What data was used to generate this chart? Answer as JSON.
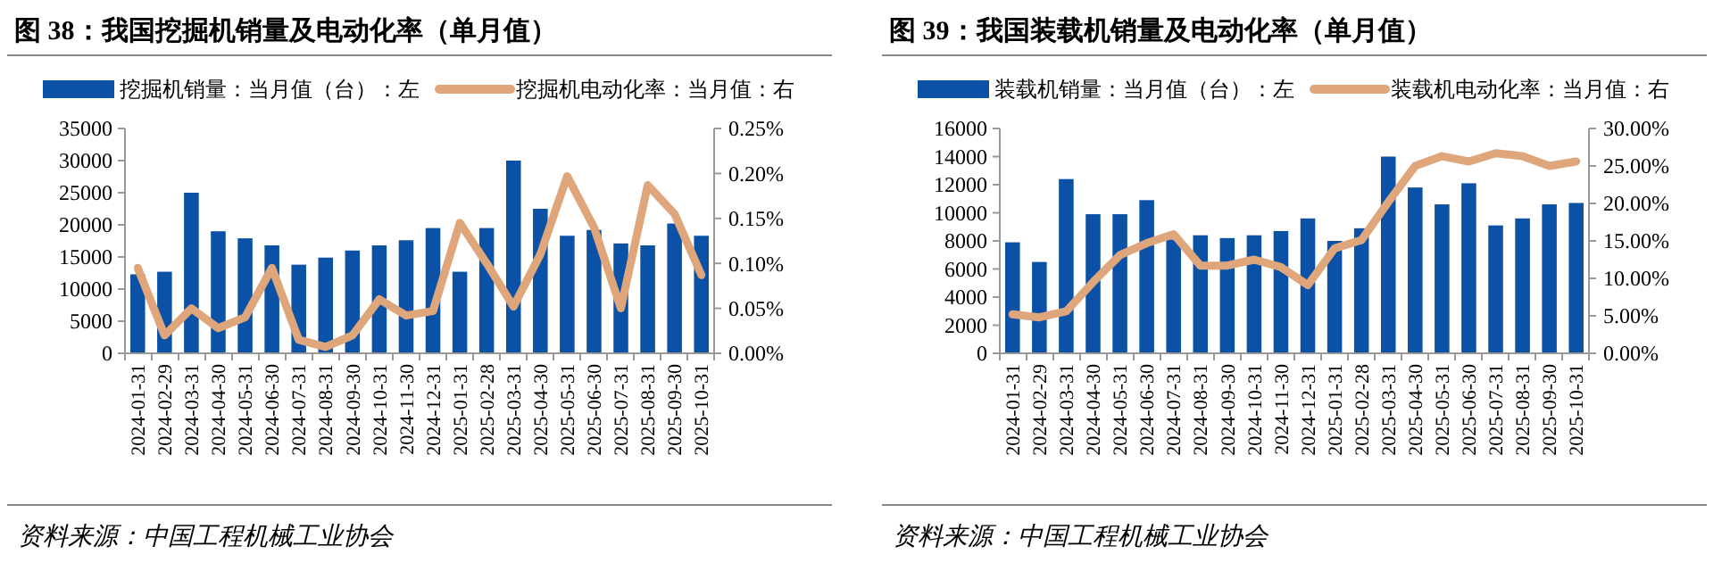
{
  "chart_data": [
    {
      "type": "bar",
      "title": "图 38：我国挖掘机销量及电动化率（单月值）",
      "annotations": [
        "资料来源：中国工程机械工业协会"
      ],
      "categories": [
        "2024-01-31",
        "2024-02-29",
        "2024-03-31",
        "2024-04-30",
        "2024-05-31",
        "2024-06-30",
        "2024-07-31",
        "2024-08-31",
        "2024-09-30",
        "2024-10-31",
        "2024-11-30",
        "2024-12-31",
        "2025-01-31",
        "2025-02-28",
        "2025-03-31",
        "2025-04-30",
        "2025-05-31",
        "2025-06-30",
        "2025-07-31",
        "2025-08-31",
        "2025-09-30",
        "2025-10-31"
      ],
      "series": [
        {
          "name": "挖掘机销量：当月值（台）：左",
          "color": "#0b52a6",
          "values": [
            12300,
            12700,
            25000,
            19000,
            17900,
            16800,
            13800,
            14900,
            16000,
            16800,
            17600,
            19500,
            12700,
            19500,
            30000,
            22500,
            18300,
            19200,
            17100,
            16800,
            20200,
            18300
          ]
        },
        {
          "name": "挖掘机电动化率：当月值：右",
          "type": "line",
          "axis": "y2",
          "color": "#dfa67b",
          "values": [
            0.095,
            0.02,
            0.05,
            0.028,
            0.04,
            0.095,
            0.015,
            0.007,
            0.02,
            0.06,
            0.042,
            0.047,
            0.145,
            0.1,
            0.052,
            0.11,
            0.197,
            0.14,
            0.05,
            0.187,
            0.155,
            0.087
          ]
        }
      ],
      "ylim": [
        0,
        35000
      ],
      "yticks": [
        0,
        5000,
        10000,
        15000,
        20000,
        25000,
        30000,
        35000
      ],
      "y2lim": [
        0,
        0.25
      ],
      "y2ticks": [
        {
          "value": 0,
          "label": "0.00%"
        },
        {
          "value": 0.05,
          "label": "0.05%"
        },
        {
          "value": 0.1,
          "label": "0.10%"
        },
        {
          "value": 0.15,
          "label": "0.15%"
        },
        {
          "value": 0.2,
          "label": "0.20%"
        },
        {
          "value": 0.25,
          "label": "0.25%"
        }
      ],
      "legend": "top",
      "grid": false,
      "marker": "none",
      "line_style": "solid"
    },
    {
      "type": "bar",
      "title": "图 39：我国装载机销量及电动化率（单月值）",
      "annotations": [
        "资料来源：中国工程机械工业协会"
      ],
      "categories": [
        "2024-01-31",
        "2024-02-29",
        "2024-03-31",
        "2024-04-30",
        "2024-05-31",
        "2024-06-30",
        "2024-07-31",
        "2024-08-31",
        "2024-09-30",
        "2024-10-31",
        "2024-11-30",
        "2024-12-31",
        "2025-01-31",
        "2025-02-28",
        "2025-03-31",
        "2025-04-30",
        "2025-05-31",
        "2025-06-30",
        "2025-07-31",
        "2025-08-31",
        "2025-09-30",
        "2025-10-31"
      ],
      "series": [
        {
          "name": "装载机销量：当月值（台）：左",
          "color": "#0b52a6",
          "values": [
            7900,
            6500,
            12400,
            9900,
            9900,
            10900,
            8100,
            8400,
            8200,
            8400,
            8700,
            9600,
            8000,
            8900,
            14000,
            11800,
            10600,
            12100,
            9100,
            9600,
            10600,
            10700
          ]
        },
        {
          "name": "装载机电动化率：当月值：右",
          "type": "line",
          "axis": "y2",
          "color": "#dfa67b",
          "values": [
            5.2,
            4.8,
            5.6,
            9.5,
            13.1,
            14.7,
            15.9,
            11.7,
            11.7,
            12.5,
            11.5,
            9.1,
            14.0,
            15.1,
            20.2,
            25.0,
            26.3,
            25.6,
            26.7,
            26.3,
            25.0,
            25.6
          ]
        }
      ],
      "ylim": [
        0,
        16000
      ],
      "yticks": [
        0,
        2000,
        4000,
        6000,
        8000,
        10000,
        12000,
        14000,
        16000
      ],
      "y2lim": [
        0,
        30
      ],
      "y2ticks": [
        {
          "value": 0,
          "label": "0.00%"
        },
        {
          "value": 5,
          "label": "5.00%"
        },
        {
          "value": 10,
          "label": "10.00%"
        },
        {
          "value": 15,
          "label": "15.00%"
        },
        {
          "value": 20,
          "label": "20.00%"
        },
        {
          "value": 25,
          "label": "25.00%"
        },
        {
          "value": 30,
          "label": "30.00%"
        }
      ],
      "legend": "top",
      "grid": false,
      "marker": "none",
      "line_style": "solid"
    }
  ]
}
